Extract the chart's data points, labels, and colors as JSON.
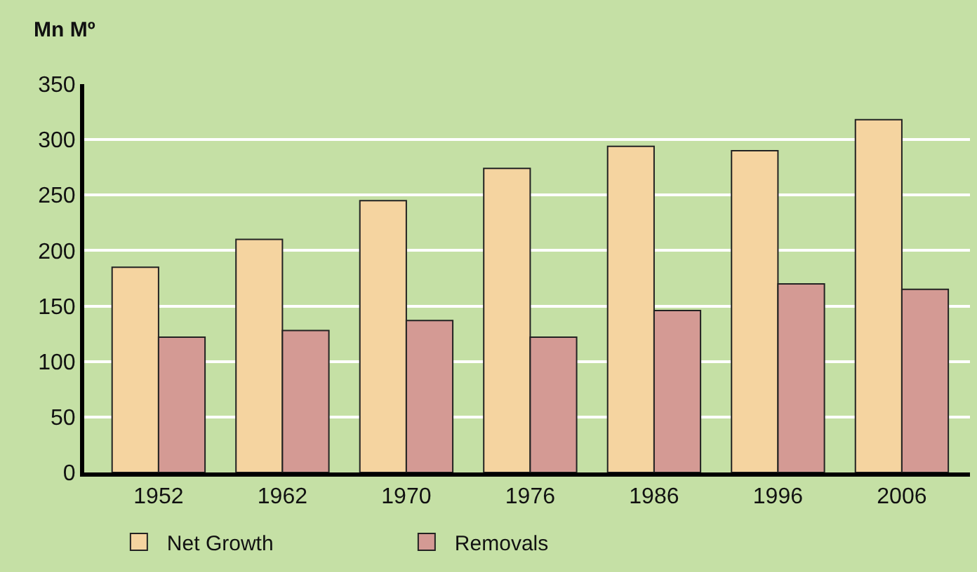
{
  "chart_data": {
    "type": "bar",
    "ylabel": "Mn Mº",
    "categories": [
      "1952",
      "1962",
      "1970",
      "1976",
      "1986",
      "1996",
      "2006"
    ],
    "series": [
      {
        "name": "Net Growth",
        "color": "#f5d4a0",
        "values": [
          185,
          210,
          245,
          274,
          294,
          290,
          318
        ]
      },
      {
        "name": "Removals",
        "color": "#d49a94",
        "values": [
          122,
          128,
          137,
          122,
          146,
          170,
          165
        ]
      }
    ],
    "ylim": [
      0,
      350
    ],
    "yticks": [
      0,
      50,
      100,
      150,
      200,
      250,
      300,
      350
    ],
    "grid": "y",
    "legend": "bottom left"
  }
}
